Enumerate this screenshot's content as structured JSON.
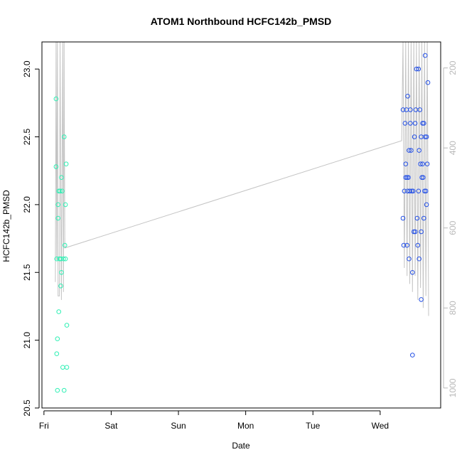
{
  "chart_data": {
    "type": "scatter",
    "title": "ATOM1 Northbound HCFC142b_PMSD",
    "xlabel": "Date",
    "ylabel": "HCFC142b_PMSD",
    "x_ticks": [
      {
        "value": 0,
        "label": "Fri"
      },
      {
        "value": 1,
        "label": "Sat"
      },
      {
        "value": 2,
        "label": "Sun"
      },
      {
        "value": 3,
        "label": "Mon"
      },
      {
        "value": 4,
        "label": "Tue"
      },
      {
        "value": 5,
        "label": "Wed"
      }
    ],
    "xlim": [
      -0.03,
      5.9
    ],
    "ylim": [
      20.5,
      23.2
    ],
    "y_ticks": [
      20.5,
      21.0,
      21.5,
      22.0,
      22.5,
      23.0
    ],
    "y2lim": [
      1050,
      135
    ],
    "y2_ticks": [
      200,
      400,
      600,
      800,
      1000
    ],
    "grid": false,
    "legend": "none",
    "colors": {
      "series_early": "#2ef0b4",
      "series_late": "#2450e6",
      "altitude_line": "#c4c4c4",
      "axis": "#000000",
      "right_axis": "#b8b8b8"
    },
    "series": [
      {
        "color": "#2ef0b4",
        "points": [
          {
            "x": 0.18,
            "y": 22.78
          },
          {
            "x": 0.18,
            "y": 22.28
          },
          {
            "x": 0.19,
            "y": 21.6
          },
          {
            "x": 0.19,
            "y": 20.9
          },
          {
            "x": 0.2,
            "y": 20.63
          },
          {
            "x": 0.2,
            "y": 21.01
          },
          {
            "x": 0.21,
            "y": 21.9
          },
          {
            "x": 0.21,
            "y": 22.0
          },
          {
            "x": 0.22,
            "y": 22.1
          },
          {
            "x": 0.22,
            "y": 21.21
          },
          {
            "x": 0.23,
            "y": 21.6
          },
          {
            "x": 0.24,
            "y": 22.1
          },
          {
            "x": 0.25,
            "y": 21.4
          },
          {
            "x": 0.25,
            "y": 21.6
          },
          {
            "x": 0.26,
            "y": 22.2
          },
          {
            "x": 0.26,
            "y": 21.5
          },
          {
            "x": 0.27,
            "y": 22.1
          },
          {
            "x": 0.28,
            "y": 20.8
          },
          {
            "x": 0.29,
            "y": 21.6
          },
          {
            "x": 0.3,
            "y": 22.5
          },
          {
            "x": 0.3,
            "y": 20.63
          },
          {
            "x": 0.31,
            "y": 21.7
          },
          {
            "x": 0.32,
            "y": 21.6
          },
          {
            "x": 0.32,
            "y": 22.0
          },
          {
            "x": 0.33,
            "y": 22.3
          },
          {
            "x": 0.34,
            "y": 21.11
          },
          {
            "x": 0.34,
            "y": 20.8
          }
        ]
      },
      {
        "color": "#2450e6",
        "points": [
          {
            "x": 5.34,
            "y": 22.7
          },
          {
            "x": 5.34,
            "y": 21.9
          },
          {
            "x": 5.35,
            "y": 21.7
          },
          {
            "x": 5.36,
            "y": 22.1
          },
          {
            "x": 5.37,
            "y": 22.6
          },
          {
            "x": 5.38,
            "y": 22.2
          },
          {
            "x": 5.38,
            "y": 22.3
          },
          {
            "x": 5.39,
            "y": 22.7
          },
          {
            "x": 5.4,
            "y": 21.7
          },
          {
            "x": 5.4,
            "y": 22.2
          },
          {
            "x": 5.41,
            "y": 22.1
          },
          {
            "x": 5.41,
            "y": 22.8
          },
          {
            "x": 5.42,
            "y": 22.2
          },
          {
            "x": 5.43,
            "y": 21.6
          },
          {
            "x": 5.43,
            "y": 22.4
          },
          {
            "x": 5.44,
            "y": 22.1
          },
          {
            "x": 5.45,
            "y": 22.6
          },
          {
            "x": 5.45,
            "y": 22.7
          },
          {
            "x": 5.46,
            "y": 22.4
          },
          {
            "x": 5.47,
            "y": 22.1
          },
          {
            "x": 5.48,
            "y": 21.5
          },
          {
            "x": 5.48,
            "y": 20.89
          },
          {
            "x": 5.49,
            "y": 22.1
          },
          {
            "x": 5.5,
            "y": 21.8
          },
          {
            "x": 5.51,
            "y": 22.5
          },
          {
            "x": 5.52,
            "y": 22.6
          },
          {
            "x": 5.52,
            "y": 21.8
          },
          {
            "x": 5.53,
            "y": 22.7
          },
          {
            "x": 5.54,
            "y": 23.0
          },
          {
            "x": 5.55,
            "y": 21.9
          },
          {
            "x": 5.56,
            "y": 21.7
          },
          {
            "x": 5.57,
            "y": 23.0
          },
          {
            "x": 5.57,
            "y": 22.1
          },
          {
            "x": 5.58,
            "y": 22.4
          },
          {
            "x": 5.58,
            "y": 21.6
          },
          {
            "x": 5.59,
            "y": 22.7
          },
          {
            "x": 5.6,
            "y": 22.3
          },
          {
            "x": 5.61,
            "y": 22.5
          },
          {
            "x": 5.61,
            "y": 21.8
          },
          {
            "x": 5.61,
            "y": 21.3
          },
          {
            "x": 5.62,
            "y": 22.2
          },
          {
            "x": 5.63,
            "y": 22.3
          },
          {
            "x": 5.63,
            "y": 22.6
          },
          {
            "x": 5.64,
            "y": 22.2
          },
          {
            "x": 5.65,
            "y": 21.9
          },
          {
            "x": 5.65,
            "y": 22.6
          },
          {
            "x": 5.66,
            "y": 22.1
          },
          {
            "x": 5.67,
            "y": 23.1
          },
          {
            "x": 5.67,
            "y": 22.5
          },
          {
            "x": 5.68,
            "y": 22.1
          },
          {
            "x": 5.69,
            "y": 22.5
          },
          {
            "x": 5.69,
            "y": 22.0
          },
          {
            "x": 5.7,
            "y": 22.3
          },
          {
            "x": 5.71,
            "y": 22.9
          }
        ]
      }
    ],
    "altitude_path": [
      {
        "x": 0.17,
        "y2": 735
      },
      {
        "x": 0.18,
        "y2": 135
      },
      {
        "x": 0.19,
        "y2": 680
      },
      {
        "x": 0.2,
        "y2": 135
      },
      {
        "x": 0.21,
        "y2": 770
      },
      {
        "x": 0.23,
        "y2": 770
      },
      {
        "x": 0.24,
        "y2": 135
      },
      {
        "x": 0.26,
        "y2": 780
      },
      {
        "x": 0.28,
        "y2": 135
      },
      {
        "x": 0.29,
        "y2": 760
      },
      {
        "x": 0.3,
        "y2": 135
      },
      {
        "x": 0.31,
        "y2": 650
      },
      {
        "x": 5.32,
        "y2": 382
      },
      {
        "x": 5.34,
        "y2": 135
      },
      {
        "x": 5.36,
        "y2": 700
      },
      {
        "x": 5.38,
        "y2": 135
      },
      {
        "x": 5.4,
        "y2": 720
      },
      {
        "x": 5.42,
        "y2": 135
      },
      {
        "x": 5.44,
        "y2": 740
      },
      {
        "x": 5.46,
        "y2": 135
      },
      {
        "x": 5.48,
        "y2": 760
      },
      {
        "x": 5.5,
        "y2": 135
      },
      {
        "x": 5.52,
        "y2": 720
      },
      {
        "x": 5.54,
        "y2": 135
      },
      {
        "x": 5.56,
        "y2": 780
      },
      {
        "x": 5.58,
        "y2": 135
      },
      {
        "x": 5.6,
        "y2": 750
      },
      {
        "x": 5.62,
        "y2": 135
      },
      {
        "x": 5.64,
        "y2": 800
      },
      {
        "x": 5.66,
        "y2": 135
      },
      {
        "x": 5.68,
        "y2": 770
      },
      {
        "x": 5.7,
        "y2": 135
      },
      {
        "x": 5.72,
        "y2": 820
      }
    ]
  }
}
